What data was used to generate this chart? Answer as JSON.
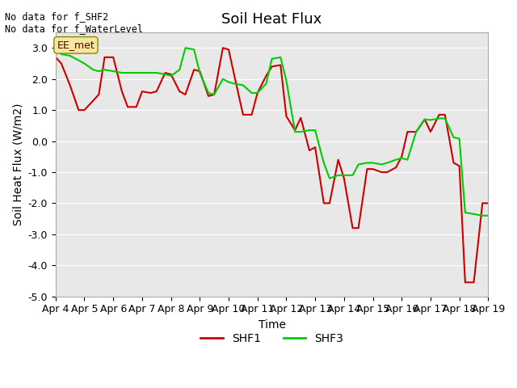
{
  "title": "Soil Heat Flux",
  "ylabel": "Soil Heat Flux (W/m2)",
  "xlabel": "Time",
  "ylim": [
    -5.0,
    3.5
  ],
  "xlim": [
    0,
    15
  ],
  "bg_color": "#e8e8e8",
  "annotation_text": "No data for f_SHF2\nNo data for f_WaterLevel",
  "box_label": "EE_met",
  "x_tick_labels": [
    "Apr 4",
    "Apr 5",
    "Apr 6",
    "Apr 7",
    "Apr 8",
    "Apr 9",
    "Apr 10",
    "Apr 11",
    "Apr 12",
    "Apr 13",
    "Apr 14",
    "Apr 15",
    "Apr 16",
    "Apr 17",
    "Apr 18",
    "Apr 19"
  ],
  "shf1_x": [
    0.0,
    0.2,
    0.5,
    0.8,
    1.0,
    1.3,
    1.5,
    1.7,
    2.0,
    2.3,
    2.5,
    2.8,
    3.0,
    3.3,
    3.5,
    3.8,
    4.0,
    4.3,
    4.5,
    4.8,
    5.0,
    5.3,
    5.5,
    5.8,
    6.0,
    6.2,
    6.5,
    6.8,
    7.0,
    7.3,
    7.5,
    7.8,
    8.0,
    8.3,
    8.5,
    8.8,
    9.0,
    9.3,
    9.5,
    9.8,
    10.0,
    10.3,
    10.5,
    10.8,
    11.0,
    11.3,
    11.5,
    11.8,
    12.0,
    12.2,
    12.5,
    12.8,
    13.0,
    13.3,
    13.5,
    13.8,
    14.0,
    14.2,
    14.5,
    14.8,
    15.0
  ],
  "shf1_y": [
    2.7,
    2.5,
    1.8,
    1.0,
    1.0,
    1.3,
    1.5,
    2.7,
    2.7,
    1.6,
    1.1,
    1.1,
    1.6,
    1.55,
    1.6,
    2.2,
    2.15,
    1.6,
    1.5,
    2.3,
    2.25,
    1.45,
    1.5,
    3.0,
    2.95,
    2.1,
    0.85,
    0.85,
    1.55,
    2.1,
    2.4,
    2.45,
    0.8,
    0.35,
    0.75,
    -0.3,
    -0.2,
    -2.0,
    -2.0,
    -0.6,
    -1.2,
    -2.8,
    -2.8,
    -0.9,
    -0.9,
    -1.0,
    -1.0,
    -0.85,
    -0.5,
    0.3,
    0.3,
    0.7,
    0.3,
    0.85,
    0.85,
    -0.7,
    -0.8,
    -4.55,
    -4.55,
    -2.0,
    -2.0
  ],
  "shf3_x": [
    0.0,
    0.2,
    0.5,
    0.8,
    1.0,
    1.3,
    1.5,
    1.7,
    2.0,
    2.3,
    2.5,
    2.8,
    3.0,
    3.3,
    3.5,
    3.8,
    4.0,
    4.3,
    4.5,
    4.8,
    5.0,
    5.3,
    5.5,
    5.8,
    6.0,
    6.2,
    6.5,
    6.8,
    7.0,
    7.3,
    7.5,
    7.8,
    8.0,
    8.3,
    8.5,
    8.8,
    9.0,
    9.3,
    9.5,
    9.8,
    10.0,
    10.3,
    10.5,
    10.8,
    11.0,
    11.3,
    11.5,
    11.8,
    12.0,
    12.2,
    12.5,
    12.8,
    13.0,
    13.3,
    13.5,
    13.8,
    14.0,
    14.2,
    14.5,
    14.8,
    15.0
  ],
  "shf3_y": [
    3.0,
    2.8,
    2.75,
    2.6,
    2.5,
    2.3,
    2.25,
    2.3,
    2.25,
    2.2,
    2.2,
    2.2,
    2.2,
    2.2,
    2.2,
    2.15,
    2.1,
    2.3,
    3.0,
    2.95,
    2.2,
    1.55,
    1.5,
    2.0,
    1.9,
    1.85,
    1.8,
    1.55,
    1.55,
    1.85,
    2.65,
    2.7,
    1.95,
    0.3,
    0.3,
    0.35,
    0.35,
    -0.7,
    -1.2,
    -1.1,
    -1.1,
    -1.1,
    -0.75,
    -0.7,
    -0.7,
    -0.75,
    -0.7,
    -0.6,
    -0.55,
    -0.6,
    0.3,
    0.7,
    0.68,
    0.73,
    0.73,
    0.12,
    0.08,
    -2.3,
    -2.35,
    -2.4,
    -2.4
  ],
  "shf1_color": "#cc0000",
  "shf3_color": "#00cc00",
  "line_width": 1.5,
  "grid_color": "white",
  "title_fontsize": 13,
  "label_fontsize": 10,
  "tick_fontsize": 9
}
